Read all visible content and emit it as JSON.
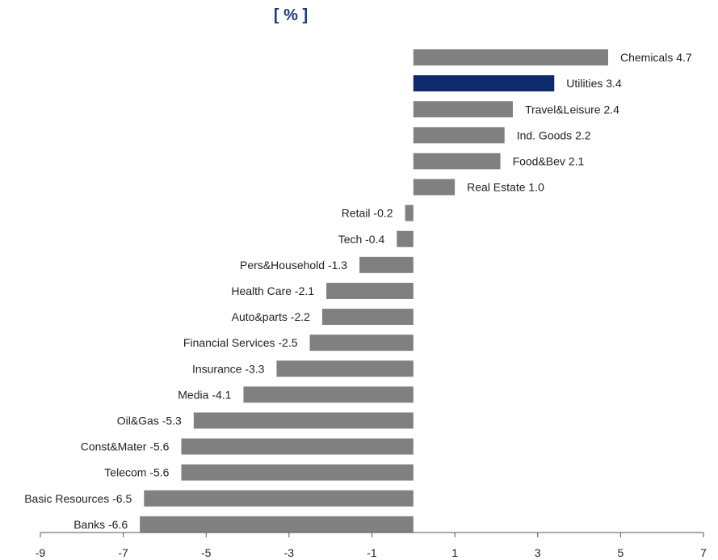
{
  "chart_data": {
    "type": "bar",
    "orientation": "horizontal",
    "unit_label": "[ % ]",
    "categories": [
      "Chemicals",
      "Utilities",
      "Travel&Leisure",
      "Ind. Goods",
      "Food&Bev",
      "Real Estate",
      "Retail",
      "Tech",
      "Pers&Household",
      "Health Care",
      "Auto&parts",
      "Financial Services",
      "Insurance",
      "Media",
      "Oil&Gas",
      "Const&Mater",
      "Telecom",
      "Basic Resources",
      "Banks"
    ],
    "values": [
      4.7,
      3.4,
      2.4,
      2.2,
      2.1,
      1.0,
      -0.2,
      -0.4,
      -1.3,
      -2.1,
      -2.2,
      -2.5,
      -3.3,
      -4.1,
      -5.3,
      -5.6,
      -5.6,
      -6.5,
      -6.6
    ],
    "bar_labels": [
      "Chemicals 4.7",
      "Utilities 3.4",
      "Travel&Leisure 2.4",
      "Ind. Goods 2.2",
      "Food&Bev 2.1",
      "Real Estate 1.0",
      "Retail -0.2",
      "Tech -0.4",
      "Pers&Household -1.3",
      "Health Care -2.1",
      "Auto&parts -2.2",
      "Financial Services -2.5",
      "Insurance -3.3",
      "Media -4.1",
      "Oil&Gas -5.3",
      "Const&Mater -5.6",
      "Telecom -5.6",
      "Basic Resources -6.5",
      "Banks -6.6"
    ],
    "highlight": "Utilities",
    "xlim": [
      -9,
      7
    ],
    "xticks": [
      -9,
      -7,
      -5,
      -3,
      -1,
      1,
      3,
      5,
      7
    ],
    "xtick_labels": [
      "-9",
      "-7",
      "-5",
      "-3",
      "-1",
      "1",
      "3",
      "5",
      "7"
    ],
    "grid": false,
    "colors": {
      "bar": "#808080",
      "highlight": "#0d2a6b",
      "axis": "#555555",
      "title": "#1f3a7a"
    }
  }
}
